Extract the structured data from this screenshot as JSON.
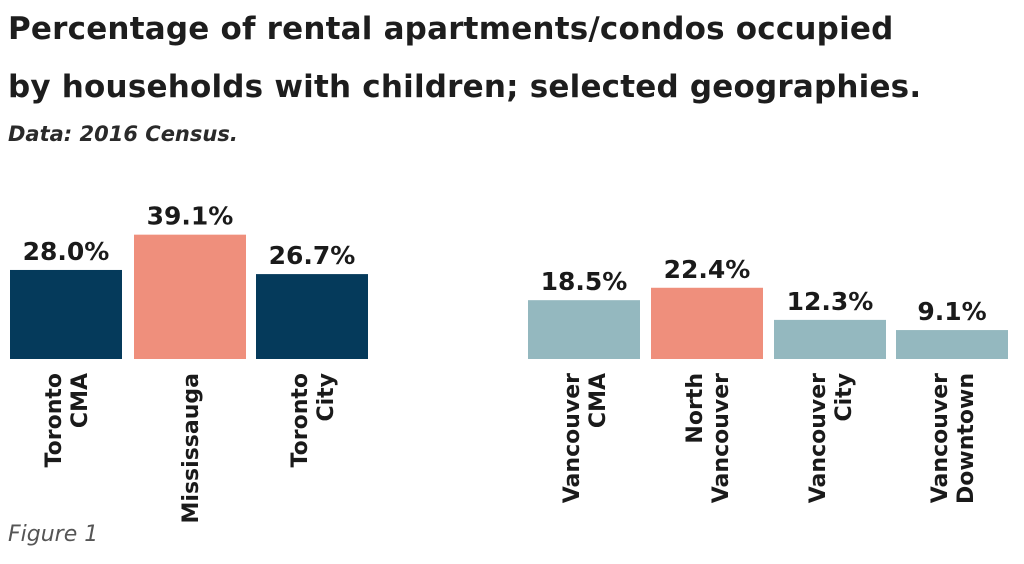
{
  "title_line1": "Percentage of rental apartments/condos occupied",
  "title_line2": "by households with children; selected geographies.",
  "subtitle": "Data: 2016 Census.",
  "figure_label": "Figure 1",
  "colors": {
    "navy": "#053a5b",
    "salmon": "#ef8f7c",
    "teal": "#94b8bf"
  },
  "chart_data": {
    "type": "bar",
    "title": "Percentage of rental apartments/condos occupied by households with children; selected geographies.",
    "subtitle": "Data: 2016 Census.",
    "ylim": [
      0,
      45
    ],
    "grid": false,
    "categories": [
      "Toronto CMA",
      "Mississauga",
      "Toronto City",
      "Vancouver CMA",
      "North Vancouver",
      "Vancouver City",
      "Vancouver Downtown"
    ],
    "bars": [
      {
        "label_lines": [
          "Toronto",
          "CMA"
        ],
        "value": 28.0,
        "value_label": "28.0%",
        "color": "#053a5b",
        "group": "Toronto"
      },
      {
        "label_lines": [
          "Mississauga"
        ],
        "value": 39.1,
        "value_label": "39.1%",
        "color": "#ef8f7c",
        "group": "Toronto"
      },
      {
        "label_lines": [
          "Toronto",
          "City"
        ],
        "value": 26.7,
        "value_label": "26.7%",
        "color": "#053a5b",
        "group": "Toronto"
      },
      {
        "label_lines": [
          "Vancouver",
          "CMA"
        ],
        "value": 18.5,
        "value_label": "18.5%",
        "color": "#94b8bf",
        "group": "Vancouver"
      },
      {
        "label_lines": [
          "North",
          "Vancouver"
        ],
        "value": 22.4,
        "value_label": "22.4%",
        "color": "#ef8f7c",
        "group": "Vancouver"
      },
      {
        "label_lines": [
          "Vancouver",
          "City"
        ],
        "value": 12.3,
        "value_label": "12.3%",
        "color": "#94b8bf",
        "group": "Vancouver"
      },
      {
        "label_lines": [
          "Vancouver",
          "Downtown"
        ],
        "value": 9.1,
        "value_label": "9.1%",
        "color": "#94b8bf",
        "group": "Vancouver"
      }
    ]
  }
}
